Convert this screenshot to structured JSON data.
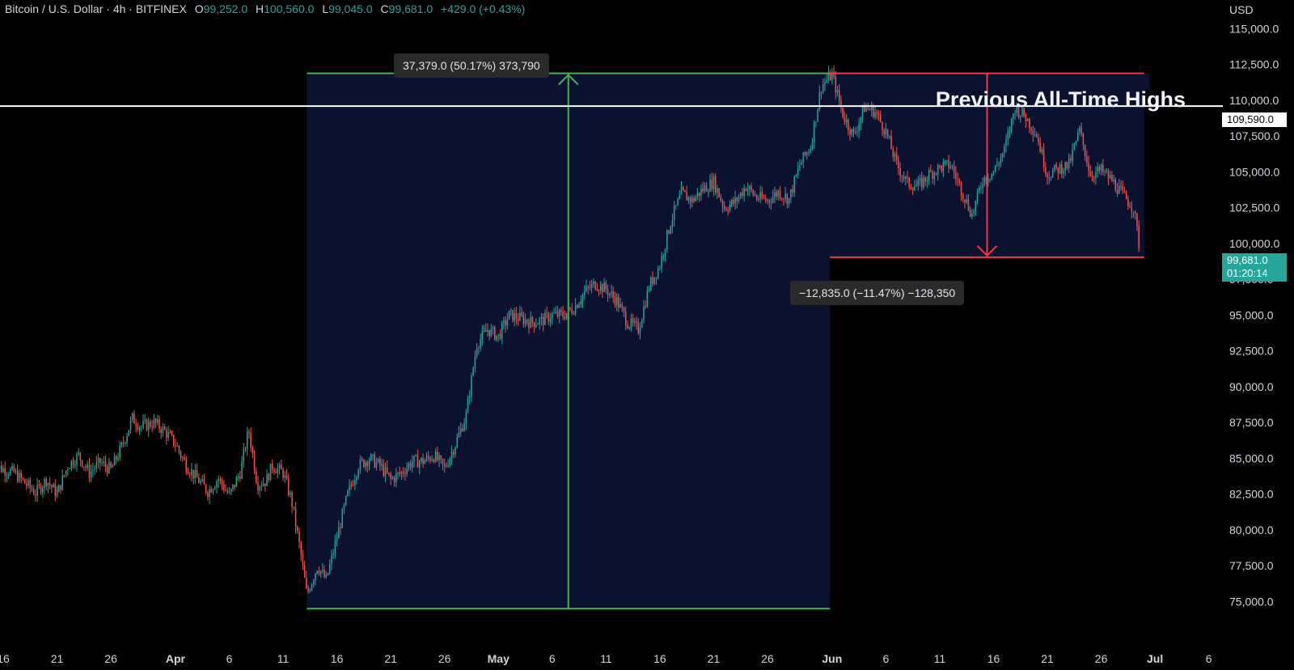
{
  "header": {
    "symbol": "Bitcoin / U.S. Dollar · 4h · BITFINEX",
    "open_label": "O",
    "open": "99,252.0",
    "high_label": "H",
    "high": "100,560.0",
    "low_label": "L",
    "low": "99,045.0",
    "close_label": "C",
    "close": "99,681.0",
    "change": "+429.0 (+0.43%)"
  },
  "currency": "USD",
  "annotations": {
    "rise_measure": "37,379.0 (50.17%) 373,790",
    "fall_measure": "−12,835.0 (−11.47%) −128,350",
    "ath_label": "Previous All-Time Highs",
    "ath_price": "109,590.0",
    "last_price": "99,681.0",
    "countdown": "01:20:14"
  },
  "colors": {
    "up": "#26a69a",
    "down": "#ef5350",
    "rise_box": "#4caf50",
    "fall_box": "#f23645",
    "box_fill": "#0b1230",
    "background": "#000000",
    "ath_line": "#ffffff",
    "axis_text": "#d1d4dc"
  },
  "chart_data": {
    "type": "candlestick",
    "symbol": "BTCUSD",
    "timeframe": "4h",
    "ylim": [
      73500,
      117000
    ],
    "y_ticks": [
      "75,000.0",
      "77,500.0",
      "80,000.0",
      "82,500.0",
      "85,000.0",
      "87,500.0",
      "90,000.0",
      "92,500.0",
      "95,000.0",
      "97,500.0",
      "100,000.0",
      "102,500.0",
      "105,000.0",
      "107,500.0",
      "110,000.0",
      "112,500.0",
      "115,000.0"
    ],
    "x_ticks": [
      "16",
      "21",
      "26",
      "Apr",
      "6",
      "11",
      "16",
      "21",
      "26",
      "May",
      "6",
      "11",
      "16",
      "21",
      "26",
      "Jun",
      "6",
      "11",
      "16",
      "21",
      "26",
      "Jul",
      "6"
    ],
    "x_tick_days": [
      -15,
      -10,
      -5,
      1,
      6,
      11,
      16,
      21,
      26,
      31,
      36,
      41,
      46,
      51,
      56,
      62,
      67,
      72,
      77,
      82,
      87,
      92,
      97
    ],
    "x_range_days": [
      -15.3,
      98
    ],
    "day_origin": "Apr 1",
    "close_path": [
      [
        -16,
        84500
      ],
      [
        -14,
        84000
      ],
      [
        -12,
        82600
      ],
      [
        -11,
        83500
      ],
      [
        -10,
        82500
      ],
      [
        -9,
        84500
      ],
      [
        -8,
        85200
      ],
      [
        -7,
        84000
      ],
      [
        -6,
        84700
      ],
      [
        -5,
        84200
      ],
      [
        -4,
        85800
      ],
      [
        -3,
        87800
      ],
      [
        -2.2,
        87200
      ],
      [
        -1,
        87500
      ],
      [
        0,
        86900
      ],
      [
        1,
        86000
      ],
      [
        2,
        84500
      ],
      [
        3,
        83600
      ],
      [
        4,
        82700
      ],
      [
        5,
        83600
      ],
      [
        6,
        82400
      ],
      [
        7,
        84000
      ],
      [
        7.8,
        87000
      ],
      [
        8.6,
        83200
      ],
      [
        9.4,
        83400
      ],
      [
        10,
        84500
      ],
      [
        11,
        84000
      ],
      [
        11.8,
        82000
      ],
      [
        12.6,
        78500
      ],
      [
        13.2,
        75500
      ],
      [
        14.2,
        77500
      ],
      [
        15,
        76500
      ],
      [
        16,
        79500
      ],
      [
        17,
        82500
      ],
      [
        18,
        84500
      ],
      [
        19,
        85000
      ],
      [
        20,
        84500
      ],
      [
        21,
        83500
      ],
      [
        22,
        84000
      ],
      [
        23,
        84800
      ],
      [
        24,
        84800
      ],
      [
        25,
        85200
      ],
      [
        26,
        84300
      ],
      [
        27,
        86000
      ],
      [
        28,
        88000
      ],
      [
        29,
        93000
      ],
      [
        30,
        94000
      ],
      [
        31,
        93500
      ],
      [
        32,
        95000
      ],
      [
        33,
        94800
      ],
      [
        34,
        94500
      ],
      [
        35,
        94600
      ],
      [
        36,
        95000
      ],
      [
        37,
        95000
      ],
      [
        38,
        95500
      ],
      [
        39,
        96600
      ],
      [
        40,
        97200
      ],
      [
        41,
        96800
      ],
      [
        42,
        96000
      ],
      [
        43,
        94500
      ],
      [
        44,
        94000
      ],
      [
        45,
        97000
      ],
      [
        46,
        98500
      ],
      [
        47,
        101500
      ],
      [
        48,
        103500
      ],
      [
        49,
        103000
      ],
      [
        50,
        103800
      ],
      [
        51,
        104300
      ],
      [
        52,
        102500
      ],
      [
        53,
        102900
      ],
      [
        54,
        104000
      ],
      [
        55,
        103200
      ],
      [
        56,
        103000
      ],
      [
        57,
        103600
      ],
      [
        58,
        103100
      ],
      [
        59,
        105500
      ],
      [
        60,
        106800
      ],
      [
        61,
        111000
      ],
      [
        62,
        111800
      ],
      [
        63,
        109000
      ],
      [
        64,
        107500
      ],
      [
        65,
        109500
      ],
      [
        66,
        109200
      ],
      [
        67,
        107800
      ],
      [
        68,
        105500
      ],
      [
        69,
        104200
      ],
      [
        70,
        104000
      ],
      [
        71,
        104800
      ],
      [
        72,
        105300
      ],
      [
        73,
        105500
      ],
      [
        74,
        103800
      ],
      [
        75,
        102000
      ],
      [
        76,
        104500
      ],
      [
        77,
        105000
      ],
      [
        78,
        106500
      ],
      [
        79,
        109500
      ],
      [
        80,
        108800
      ],
      [
        81,
        107600
      ],
      [
        82,
        104800
      ],
      [
        83,
        105200
      ],
      [
        84,
        105500
      ],
      [
        85,
        107900
      ],
      [
        86,
        104800
      ],
      [
        87,
        105100
      ],
      [
        88,
        104400
      ],
      [
        89,
        103400
      ],
      [
        90,
        102500
      ],
      [
        90.6,
        99681
      ]
    ],
    "rise_range": {
      "from_day": 13.2,
      "to_day": 61.8,
      "low": 74500,
      "high": 111880
    },
    "fall_range": {
      "from_day": 61.8,
      "to_day": 91,
      "high": 111880,
      "low": 99045
    },
    "ath_level": 109590,
    "last_close": 99681,
    "last_day": 90.6,
    "title": "Bitcoin / U.S. Dollar · 4h · BITFINEX"
  }
}
